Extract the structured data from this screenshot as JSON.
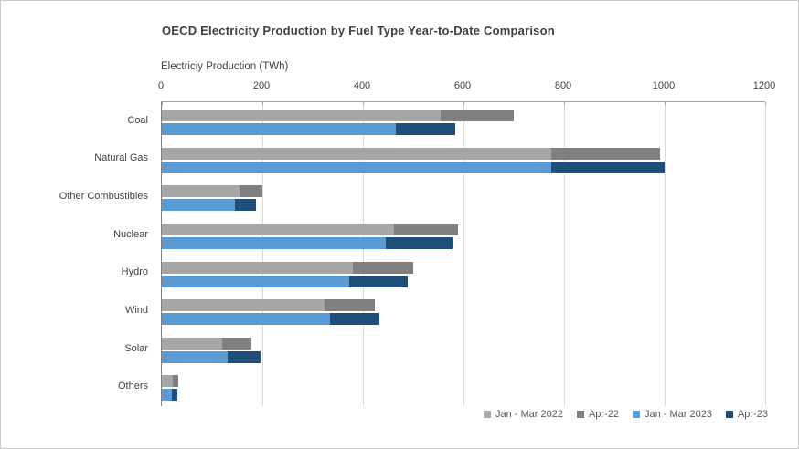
{
  "chart_data": {
    "type": "bar",
    "orientation": "horizontal",
    "stacked": true,
    "title": "OECD Electricity Production by Fuel Type Year-to-Date Comparison",
    "axis_title": "Electriciy Production (TWh)",
    "categories": [
      "Coal",
      "Natural Gas",
      "Other Combustibles",
      "Nuclear",
      "Hydro",
      "Wind",
      "Solar",
      "Others"
    ],
    "series": [
      {
        "name": "Jan - Mar 2022",
        "color": "#A6A6A6",
        "bar": "2022",
        "values": [
          555,
          775,
          155,
          462,
          380,
          323,
          120,
          22
        ]
      },
      {
        "name": "Apr-22",
        "color": "#7F7F7F",
        "bar": "2022",
        "values": [
          145,
          215,
          45,
          128,
          120,
          100,
          58,
          10
        ]
      },
      {
        "name": "Jan - Mar 2023",
        "color": "#5B9BD5",
        "bar": "2023",
        "values": [
          465,
          775,
          145,
          445,
          373,
          334,
          130,
          20
        ]
      },
      {
        "name": "Apr-23",
        "color": "#1F4E79",
        "bar": "2023",
        "values": [
          118,
          225,
          43,
          133,
          117,
          98,
          67,
          11
        ]
      }
    ],
    "xlim": [
      0,
      1200
    ],
    "x_ticks": [
      0,
      200,
      400,
      600,
      800,
      1000,
      1200
    ],
    "grid": true,
    "legend_position": "bottom-right",
    "colors": {
      "gridline": "#d9d9d9",
      "axis_line_top": "#a6a6a6",
      "axis_line_left": "#7f7f7f",
      "text": "#3f3f3f",
      "legend_text": "#595959"
    }
  }
}
